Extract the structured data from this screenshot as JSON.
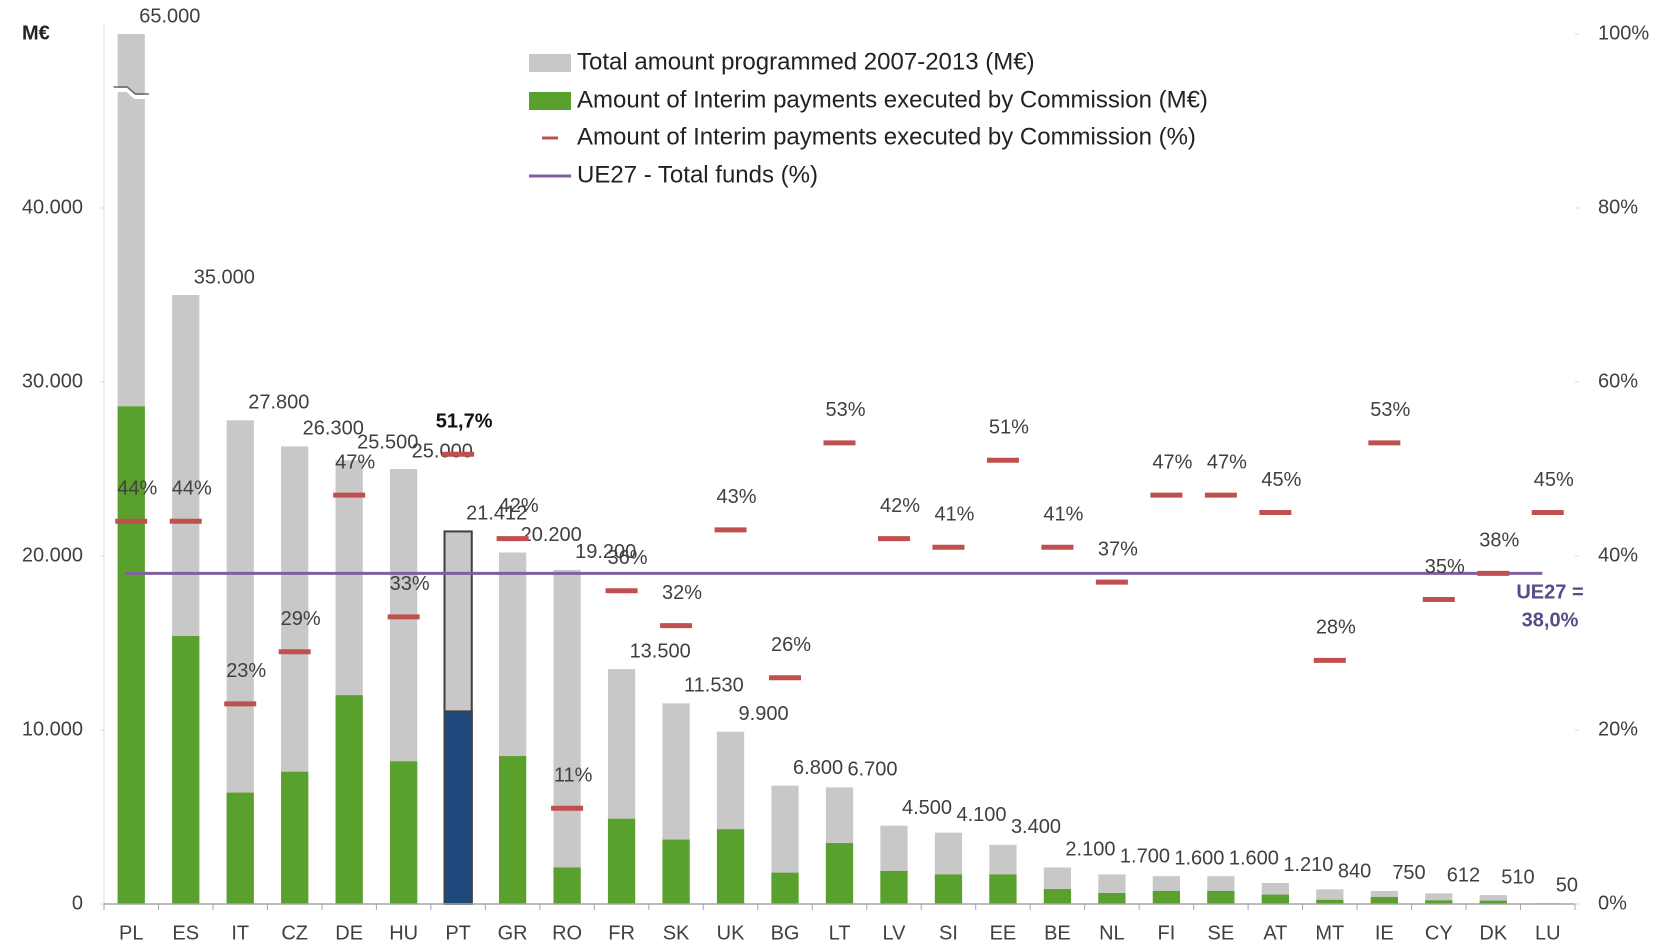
{
  "chart_data": {
    "type": "bar",
    "y_label": "M€",
    "categories": [
      "PL",
      "ES",
      "IT",
      "CZ",
      "DE",
      "HU",
      "PT",
      "GR",
      "RO",
      "FR",
      "SK",
      "UK",
      "BG",
      "LT",
      "LV",
      "SI",
      "EE",
      "BE",
      "NL",
      "FI",
      "SE",
      "AT",
      "MT",
      "IE",
      "CY",
      "DK",
      "LU"
    ],
    "series": [
      {
        "name": "Total amount programmed 2007-2013 (M€)",
        "color": "#c8c8c8",
        "values": [
          65000,
          35000,
          27800,
          26300,
          25500,
          25000,
          21412,
          20200,
          19200,
          13500,
          11530,
          9900,
          6800,
          6700,
          4500,
          4100,
          3400,
          2100,
          1700,
          1600,
          1600,
          1210,
          840,
          750,
          612,
          510,
          50
        ],
        "value_labels": [
          "65.000",
          "35.000",
          "27.800",
          "26.300",
          "25.500",
          "25.000",
          "21.412",
          "20.200",
          "19.200",
          "13.500",
          "11.530",
          "9.900",
          "6.800",
          "6.700",
          "4.500",
          "4.100",
          "3.400",
          "2.100",
          "1.700",
          "1.600",
          "1.600",
          "1.210",
          "840",
          "750",
          "612",
          "510",
          "50"
        ]
      },
      {
        "name": "Amount of Interim payments executed  by Commission (M€)",
        "color": "#5aa02c",
        "values": [
          28600,
          15400,
          6400,
          7600,
          12000,
          8200,
          11070,
          8500,
          2100,
          4900,
          3700,
          4300,
          1800,
          3500,
          1900,
          1700,
          1700,
          860,
          630,
          750,
          750,
          540,
          240,
          400,
          210,
          190,
          20
        ]
      },
      {
        "name": "Amount of Interim payments executed  by Commission (%)",
        "color": "#c0504d",
        "axis": "y2",
        "values": [
          44,
          44,
          23,
          29,
          47,
          33,
          51.7,
          42,
          11,
          36,
          32,
          43,
          26,
          53,
          42,
          41,
          51,
          41,
          37,
          47,
          47,
          45,
          28,
          53,
          35,
          38,
          45
        ],
        "value_labels": [
          "44%",
          "44%",
          "23%",
          "29%",
          "47%",
          "33%",
          "51,7%",
          "42%",
          "11%",
          "36%",
          "32%",
          "43%",
          "26%",
          "53%",
          "42%",
          "41%",
          "51%",
          "41%",
          "37%",
          "47%",
          "47%",
          "45%",
          "28%",
          "53%",
          "35%",
          "38%",
          "45%"
        ]
      }
    ],
    "reference_line": {
      "name": "UE27 - Total funds (%)",
      "value": 38,
      "axis": "y2",
      "color": "#7f5fa0",
      "label": [
        "UE27 =",
        "38,0%"
      ]
    },
    "highlight_index": 6,
    "highlight_color": "#1f497d",
    "ylim": [
      0,
      50000
    ],
    "yticks": [
      0,
      {
        "value": 10000,
        "label": "10.000"
      },
      {
        "value": 20000,
        "label": "20.000"
      },
      {
        "value": 30000,
        "label": "30.000"
      },
      {
        "value": 40000,
        "label": "40.000"
      }
    ],
    "y2lim": [
      0,
      100
    ],
    "y2ticks": [
      {
        "value": 0,
        "label": "0%"
      },
      {
        "value": 20,
        "label": "20%"
      },
      {
        "value": 40,
        "label": "40%"
      },
      {
        "value": 60,
        "label": "60%"
      },
      {
        "value": 80,
        "label": "80%"
      },
      {
        "value": 100,
        "label": "100%"
      }
    ],
    "grid": false
  }
}
